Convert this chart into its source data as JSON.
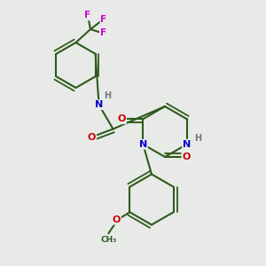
{
  "background_color": "#e8eae8",
  "bond_color": "#2d5a1b",
  "bond_width": 1.5,
  "atom_colors": {
    "C": "#2d5a1b",
    "N": "#0000cc",
    "O": "#cc0000",
    "F": "#cc00cc",
    "H": "#777777"
  },
  "figsize": [
    3.0,
    3.0
  ],
  "dpi": 100,
  "xlim": [
    0,
    10
  ],
  "ylim": [
    0,
    10
  ]
}
